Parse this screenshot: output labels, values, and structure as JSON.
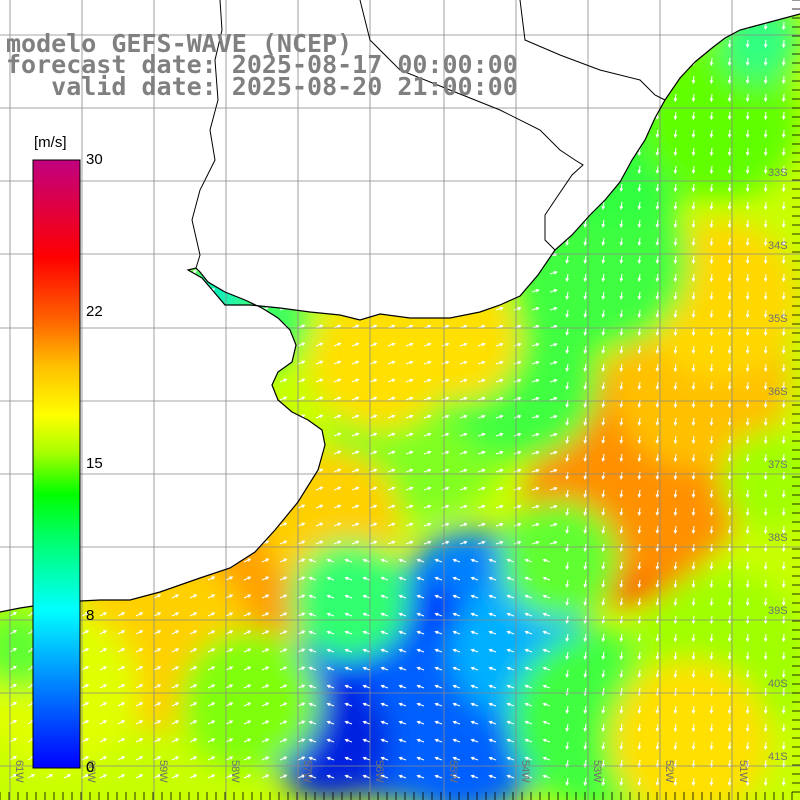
{
  "title": {
    "line1": "modelo GEFS-WAVE (NCEP)",
    "line2": "forecast date: 2025-08-17 00:00:00",
    "line3": "   valid date: 2025-08-20 21:00:00"
  },
  "colorbar": {
    "unit": "[m/s]",
    "ticks": [
      "30",
      "22",
      "15",
      "8",
      "0"
    ],
    "tick_values": [
      30,
      22,
      15,
      8,
      0
    ],
    "colors": [
      "#0000ff",
      "#00ffff",
      "#00ff00",
      "#ffff00",
      "#ff8000",
      "#ff0000",
      "#c00080"
    ]
  },
  "map": {
    "lat_labels": [
      "33S",
      "34S",
      "35S",
      "36S",
      "37S",
      "38S",
      "39S",
      "40S",
      "41S"
    ],
    "lon_labels": [
      "61W",
      "60W",
      "59W",
      "58W",
      "57W",
      "56W",
      "55W",
      "54W",
      "53W",
      "52W",
      "51W"
    ],
    "variable": "wind speed [m/s] with wind direction arrows"
  }
}
